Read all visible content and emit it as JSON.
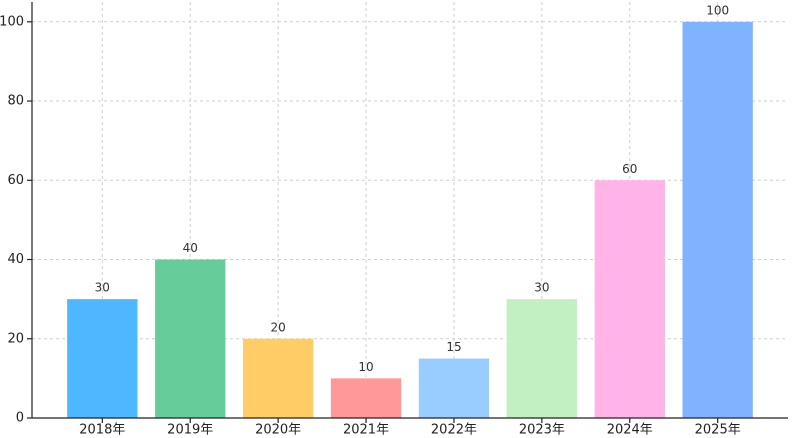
{
  "chart_data": {
    "type": "bar",
    "categories": [
      "2018年",
      "2019年",
      "2020年",
      "2021年",
      "2022年",
      "2023年",
      "2024年",
      "2025年"
    ],
    "values": [
      30,
      40,
      20,
      10,
      15,
      30,
      60,
      100
    ],
    "colors": [
      "#4db8ff",
      "#66cc99",
      "#ffcc66",
      "#ff9999",
      "#99ccff",
      "#c2f0c2",
      "#ffb3e6",
      "#80b3ff"
    ],
    "ylim": [
      0,
      105
    ],
    "yticks": [
      0,
      20,
      40,
      60,
      80,
      100
    ],
    "grid": true
  }
}
